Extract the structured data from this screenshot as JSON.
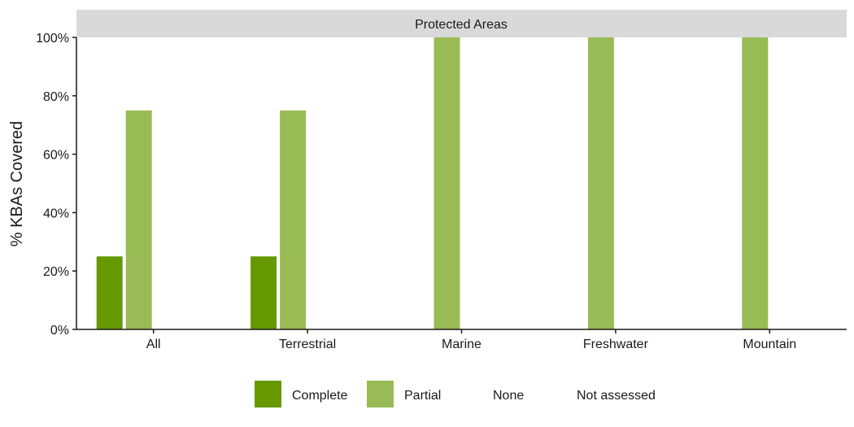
{
  "chart_data": {
    "type": "bar",
    "facet_title": "Protected Areas",
    "ylabel": "% KBAs Covered",
    "xlabel": "",
    "ylim": [
      0,
      100
    ],
    "y_ticks": [
      0,
      20,
      40,
      60,
      80,
      100
    ],
    "y_tick_suffix": "%",
    "categories": [
      "All",
      "Terrestrial",
      "Marine",
      "Freshwater",
      "Mountain"
    ],
    "series": [
      {
        "name": "Complete",
        "color": "#669900",
        "values": [
          25,
          25,
          0,
          0,
          0
        ]
      },
      {
        "name": "Partial",
        "color": "#99BB55",
        "values": [
          75,
          75,
          100,
          100,
          100
        ]
      },
      {
        "name": "None",
        "color": "#FFFFFF",
        "values": [
          0,
          0,
          0,
          0,
          0
        ]
      },
      {
        "name": "Not assessed",
        "color": "#FFFFFF",
        "values": [
          0,
          0,
          0,
          0,
          0
        ]
      }
    ],
    "grid": false,
    "legend_position": "bottom"
  }
}
